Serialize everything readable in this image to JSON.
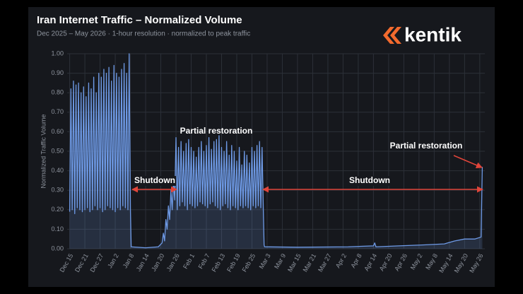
{
  "brand": "kentik",
  "chart_data": {
    "type": "line",
    "title": "Iran Internet Traffic – Normalized Volume",
    "subtitle": "Dec 2025 – May 2026 · 1-hour resolution · normalized to peak traffic",
    "y_label": "Normalized Traffic Volume",
    "color": "#6e9ae6",
    "grid": true,
    "xlim": [
      -1,
      164
    ],
    "ylim": [
      0,
      1
    ],
    "xticks": [
      {
        "value": 0,
        "label": "Dec 15"
      },
      {
        "value": 6,
        "label": "Dec 21"
      },
      {
        "value": 12,
        "label": "Dec 27"
      },
      {
        "value": 18,
        "label": "Jan 2"
      },
      {
        "value": 24,
        "label": "Jan 8"
      },
      {
        "value": 30,
        "label": "Jan 14"
      },
      {
        "value": 36,
        "label": "Jan 20"
      },
      {
        "value": 42,
        "label": "Jan 26"
      },
      {
        "value": 48,
        "label": "Feb 1"
      },
      {
        "value": 54,
        "label": "Feb 7"
      },
      {
        "value": 60,
        "label": "Feb 13"
      },
      {
        "value": 66,
        "label": "Feb 19"
      },
      {
        "value": 72,
        "label": "Feb 25"
      },
      {
        "value": 78,
        "label": "Mar 3"
      },
      {
        "value": 84,
        "label": "Mar 9"
      },
      {
        "value": 90,
        "label": "Mar 15"
      },
      {
        "value": 96,
        "label": "Mar 21"
      },
      {
        "value": 102,
        "label": "Mar 27"
      },
      {
        "value": 108,
        "label": "Apr 2"
      },
      {
        "value": 114,
        "label": "Apr 8"
      },
      {
        "value": 120,
        "label": "Apr 14"
      },
      {
        "value": 126,
        "label": "Apr 20"
      },
      {
        "value": 132,
        "label": "Apr 26"
      },
      {
        "value": 138,
        "label": "May 2"
      },
      {
        "value": 144,
        "label": "May 8"
      },
      {
        "value": 150,
        "label": "May 14"
      },
      {
        "value": 156,
        "label": "May 20"
      },
      {
        "value": 162,
        "label": "May 26"
      }
    ],
    "yticks": [
      {
        "value": 0,
        "label": "0.00"
      },
      {
        "value": 0.1,
        "label": "0.10"
      },
      {
        "value": 0.2,
        "label": "0.20"
      },
      {
        "value": 0.3,
        "label": "0.30"
      },
      {
        "value": 0.4,
        "label": "0.40"
      },
      {
        "value": 0.5,
        "label": "0.50"
      },
      {
        "value": 0.6,
        "label": "0.60"
      },
      {
        "value": 0.7,
        "label": "0.70"
      },
      {
        "value": 0.8,
        "label": "0.80"
      },
      {
        "value": 0.9,
        "label": "0.90"
      },
      {
        "value": 1,
        "label": "1.00"
      }
    ],
    "x": [
      0,
      0.5,
      1,
      1.5,
      2,
      2.5,
      3,
      3.5,
      4,
      4.5,
      5,
      5.5,
      6,
      6.5,
      7,
      7.5,
      8,
      8.5,
      9,
      9.5,
      10,
      10.5,
      11,
      11.5,
      12,
      12.5,
      13,
      13.5,
      14,
      14.5,
      15,
      15.5,
      16,
      16.5,
      17,
      17.5,
      18,
      18.5,
      19,
      19.5,
      20,
      20.5,
      21,
      21.5,
      22,
      22.5,
      23,
      23.5,
      24,
      24.3,
      30,
      35,
      36.5,
      37,
      37.5,
      38,
      38.5,
      39,
      39.5,
      40,
      40.5,
      41,
      41.5,
      42,
      42.5,
      43,
      43.5,
      44,
      44.5,
      45,
      45.5,
      46,
      46.5,
      47,
      47.5,
      48,
      48.5,
      49,
      49.5,
      50,
      50.5,
      51,
      51.5,
      52,
      52.5,
      53,
      53.5,
      54,
      54.5,
      55,
      55.5,
      56,
      56.5,
      57,
      57.5,
      58,
      58.5,
      59,
      59.5,
      60,
      60.5,
      61,
      61.5,
      62,
      62.5,
      63,
      63.5,
      64,
      64.5,
      65,
      65.5,
      66,
      66.5,
      67,
      67.5,
      68,
      68.5,
      69,
      69.5,
      70,
      70.5,
      71,
      71.5,
      72,
      72.5,
      73,
      73.5,
      74,
      74.5,
      75,
      75.5,
      76,
      76.5,
      76.8,
      77,
      90,
      110,
      120,
      120.5,
      121,
      130,
      140,
      148,
      152,
      156,
      160,
      162.5,
      163
    ],
    "values": [
      0.19,
      0.82,
      0.2,
      0.86,
      0.18,
      0.84,
      0.21,
      0.85,
      0.2,
      0.8,
      0.19,
      0.83,
      0.2,
      0.78,
      0.21,
      0.85,
      0.19,
      0.82,
      0.2,
      0.88,
      0.22,
      0.8,
      0.2,
      0.9,
      0.21,
      0.88,
      0.19,
      0.92,
      0.2,
      0.9,
      0.22,
      0.93,
      0.21,
      0.86,
      0.2,
      0.94,
      0.19,
      0.9,
      0.21,
      0.88,
      0.2,
      0.92,
      0.22,
      0.95,
      0.21,
      0.9,
      0.2,
      1.0,
      0.2,
      0.01,
      0.005,
      0.01,
      0.03,
      0.08,
      0.04,
      0.15,
      0.1,
      0.22,
      0.15,
      0.3,
      0.2,
      0.35,
      0.25,
      0.57,
      0.2,
      0.52,
      0.22,
      0.55,
      0.24,
      0.5,
      0.22,
      0.54,
      0.2,
      0.56,
      0.23,
      0.52,
      0.22,
      0.5,
      0.21,
      0.47,
      0.22,
      0.52,
      0.24,
      0.55,
      0.23,
      0.5,
      0.22,
      0.53,
      0.21,
      0.57,
      0.23,
      0.51,
      0.24,
      0.55,
      0.22,
      0.56,
      0.21,
      0.58,
      0.2,
      0.52,
      0.22,
      0.5,
      0.23,
      0.55,
      0.21,
      0.48,
      0.2,
      0.53,
      0.22,
      0.5,
      0.21,
      0.45,
      0.2,
      0.52,
      0.22,
      0.43,
      0.21,
      0.5,
      0.22,
      0.48,
      0.21,
      0.44,
      0.2,
      0.52,
      0.22,
      0.5,
      0.21,
      0.53,
      0.22,
      0.55,
      0.21,
      0.52,
      0.2,
      0.02,
      0.01,
      0.008,
      0.01,
      0.015,
      0.03,
      0.01,
      0.015,
      0.02,
      0.025,
      0.04,
      0.05,
      0.05,
      0.06,
      0.42
    ],
    "annotations": [
      "Shutdown",
      "Partial restoration",
      "Shutdown",
      "Partial restoration"
    ]
  }
}
